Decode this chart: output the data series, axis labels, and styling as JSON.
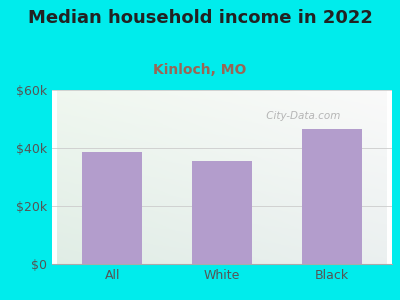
{
  "title": "Median household income in 2022",
  "subtitle": "Kinloch, MO",
  "categories": [
    "All",
    "White",
    "Black"
  ],
  "values": [
    38500,
    35500,
    46500
  ],
  "bar_color": "#b39dcc",
  "background_color": "#00ecec",
  "title_color": "#222222",
  "subtitle_color": "#996655",
  "tick_label_color": "#555555",
  "ylim": [
    0,
    60000
  ],
  "yticks": [
    0,
    20000,
    40000,
    60000
  ],
  "ytick_labels": [
    "$0",
    "$20k",
    "$40k",
    "$60k"
  ],
  "title_fontsize": 13,
  "subtitle_fontsize": 10,
  "tick_fontsize": 9,
  "watermark_text": " City-Data.com",
  "watermark_color": "#aaaaaa",
  "grid_color": "#cccccc",
  "plot_bg_topleft": "#e8f5e8",
  "plot_bg_topright": "#f5faff",
  "plot_bg_botleft": "#d8f0d8",
  "plot_bg_botright": "#eef8f8"
}
